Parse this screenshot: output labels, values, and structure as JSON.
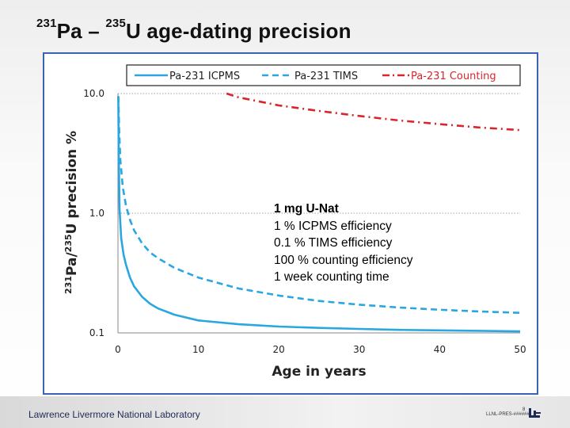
{
  "title": {
    "prefix_mass": "231",
    "prefix_element": "Pa",
    "separator": " – ",
    "mid_mass": "235",
    "mid_element": "U",
    "rest": " age-dating precision"
  },
  "chart_data": {
    "type": "line",
    "title": "",
    "xlabel": "Age in years",
    "ylabel": "231Pa/235U precision %",
    "ylabel_parts": {
      "mass1": "231",
      "el1": "Pa/",
      "mass2": "235",
      "el2": "U precision %"
    },
    "yscale": "log",
    "xlim": [
      0,
      50
    ],
    "ylim": [
      0.1,
      10
    ],
    "x_ticks": [
      "0",
      "10",
      "20",
      "30",
      "40",
      "50"
    ],
    "y_ticks": [
      "10.0",
      "1.0",
      "0.1"
    ],
    "legend_position": "top",
    "gridlines": "dotted at 1.0 and 10.0",
    "series": [
      {
        "name": "Pa-231 ICPMS",
        "style": "solid",
        "color": "#2aa7e0",
        "x": [
          0.04,
          0.1,
          0.2,
          0.4,
          0.7,
          1,
          1.5,
          2,
          3,
          4,
          5,
          7,
          10,
          15,
          20,
          25,
          30,
          35,
          40,
          45,
          50
        ],
        "y": [
          9.5,
          3.1,
          1.08,
          0.62,
          0.45,
          0.37,
          0.29,
          0.245,
          0.2,
          0.175,
          0.16,
          0.142,
          0.127,
          0.118,
          0.113,
          0.11,
          0.108,
          0.106,
          0.105,
          0.104,
          0.103
        ]
      },
      {
        "name": "Pa-231 TIMS",
        "style": "dashed",
        "color": "#2aa7e0",
        "x": [
          0.05,
          0.15,
          0.3,
          0.6,
          1,
          1.5,
          2,
          3,
          4,
          5,
          7,
          10,
          15,
          20,
          25,
          30,
          35,
          40,
          45,
          50
        ],
        "y": [
          9.5,
          5.0,
          2.8,
          1.65,
          1.15,
          0.88,
          0.72,
          0.56,
          0.47,
          0.42,
          0.35,
          0.29,
          0.235,
          0.205,
          0.185,
          0.172,
          0.163,
          0.156,
          0.151,
          0.147
        ]
      },
      {
        "name": "Pa-231 Counting",
        "style": "dash-dot",
        "color": "#d9252c",
        "x": [
          13.5,
          15,
          20,
          25,
          30,
          35,
          40,
          45,
          50
        ],
        "y": [
          10,
          9.3,
          7.95,
          7.15,
          6.5,
          5.95,
          5.55,
          5.2,
          4.95
        ]
      }
    ]
  },
  "annotation": {
    "lines": [
      "1 mg U-Nat",
      "1 % ICPMS efficiency",
      "0.1 % TIMS efficiency",
      "100 % counting efficiency",
      "1 week counting time"
    ]
  },
  "footer": {
    "institution": "Lawrence Livermore National Laboratory",
    "doc_id": "LLNL-PRES-######",
    "page": "8"
  },
  "colors": {
    "frame": "#3a63b5",
    "series_blue": "#2aa7e0",
    "series_red": "#d9252c",
    "logo": "#1d2a55"
  }
}
